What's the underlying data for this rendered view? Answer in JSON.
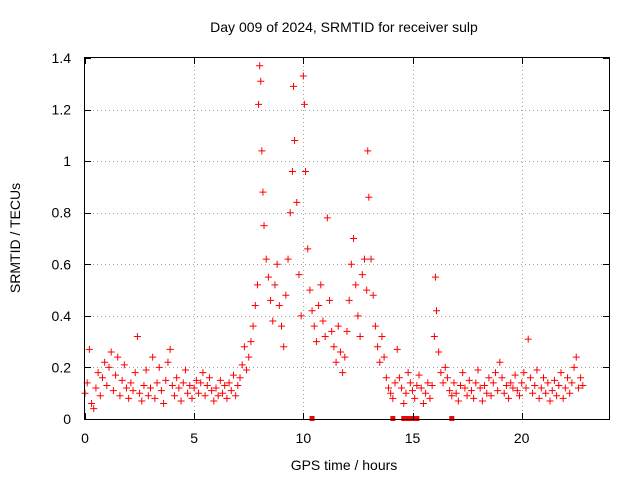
{
  "chart_data": {
    "type": "scatter",
    "title": "Day 009 of 2024, SRMTID for receiver sulp",
    "xlabel": "GPS time / hours",
    "ylabel": "SRMTID / TECUs",
    "xlim": [
      0,
      24
    ],
    "ylim": [
      0,
      1.4
    ],
    "xticks": [
      0,
      5,
      10,
      15,
      20
    ],
    "xtick_labels": [
      "0",
      "5",
      "10",
      "15",
      "20"
    ],
    "yticks": [
      0,
      0.2,
      0.4,
      0.6,
      0.8,
      1.0,
      1.2,
      1.4
    ],
    "ytick_labels": [
      "0",
      "0.2",
      "0.4",
      "0.6",
      "0.8",
      "1",
      "1.2",
      "1.4"
    ],
    "grid": true,
    "marker": "plus",
    "color": "#ff0000",
    "series": [
      {
        "name": "SRMTID",
        "points": [
          [
            0.0,
            0.1
          ],
          [
            0.1,
            0.14
          ],
          [
            0.2,
            0.27
          ],
          [
            0.3,
            0.06
          ],
          [
            0.4,
            0.04
          ],
          [
            0.5,
            0.12
          ],
          [
            0.6,
            0.18
          ],
          [
            0.7,
            0.09
          ],
          [
            0.8,
            0.16
          ],
          [
            0.9,
            0.22
          ],
          [
            1.0,
            0.13
          ],
          [
            1.1,
            0.2
          ],
          [
            1.2,
            0.26
          ],
          [
            1.3,
            0.11
          ],
          [
            1.4,
            0.17
          ],
          [
            1.5,
            0.24
          ],
          [
            1.6,
            0.09
          ],
          [
            1.7,
            0.15
          ],
          [
            1.8,
            0.21
          ],
          [
            1.9,
            0.12
          ],
          [
            2.0,
            0.08
          ],
          [
            2.1,
            0.14
          ],
          [
            2.2,
            0.11
          ],
          [
            2.3,
            0.18
          ],
          [
            2.4,
            0.32
          ],
          [
            2.5,
            0.1
          ],
          [
            2.6,
            0.07
          ],
          [
            2.7,
            0.13
          ],
          [
            2.8,
            0.19
          ],
          [
            2.9,
            0.09
          ],
          [
            3.0,
            0.12
          ],
          [
            3.1,
            0.24
          ],
          [
            3.2,
            0.08
          ],
          [
            3.3,
            0.14
          ],
          [
            3.4,
            0.2
          ],
          [
            3.5,
            0.11
          ],
          [
            3.6,
            0.06
          ],
          [
            3.7,
            0.15
          ],
          [
            3.8,
            0.22
          ],
          [
            3.9,
            0.27
          ],
          [
            4.0,
            0.13
          ],
          [
            4.1,
            0.09
          ],
          [
            4.2,
            0.16
          ],
          [
            4.3,
            0.12
          ],
          [
            4.4,
            0.07
          ],
          [
            4.5,
            0.14
          ],
          [
            4.6,
            0.19
          ],
          [
            4.7,
            0.1
          ],
          [
            4.8,
            0.13
          ],
          [
            4.9,
            0.08
          ],
          [
            5.0,
            0.12
          ],
          [
            5.1,
            0.15
          ],
          [
            5.2,
            0.1
          ],
          [
            5.3,
            0.14
          ],
          [
            5.4,
            0.18
          ],
          [
            5.5,
            0.09
          ],
          [
            5.6,
            0.13
          ],
          [
            5.7,
            0.16
          ],
          [
            5.8,
            0.11
          ],
          [
            5.9,
            0.07
          ],
          [
            6.0,
            0.12
          ],
          [
            6.1,
            0.09
          ],
          [
            6.2,
            0.15
          ],
          [
            6.3,
            0.1
          ],
          [
            6.4,
            0.13
          ],
          [
            6.5,
            0.08
          ],
          [
            6.6,
            0.14
          ],
          [
            6.7,
            0.11
          ],
          [
            6.8,
            0.17
          ],
          [
            6.9,
            0.09
          ],
          [
            7.0,
            0.13
          ],
          [
            7.1,
            0.16
          ],
          [
            7.2,
            0.21
          ],
          [
            7.3,
            0.28
          ],
          [
            7.4,
            0.19
          ],
          [
            7.5,
            0.24
          ],
          [
            7.6,
            0.3
          ],
          [
            7.7,
            0.36
          ],
          [
            7.8,
            0.44
          ],
          [
            7.9,
            0.52
          ],
          [
            7.95,
            1.22
          ],
          [
            8.0,
            1.37
          ],
          [
            8.05,
            1.31
          ],
          [
            8.1,
            1.04
          ],
          [
            8.15,
            0.88
          ],
          [
            8.2,
            0.75
          ],
          [
            8.3,
            0.62
          ],
          [
            8.4,
            0.55
          ],
          [
            8.5,
            0.46
          ],
          [
            8.6,
            0.38
          ],
          [
            8.7,
            0.52
          ],
          [
            8.8,
            0.6
          ],
          [
            8.9,
            0.44
          ],
          [
            9.0,
            0.36
          ],
          [
            9.1,
            0.28
          ],
          [
            9.2,
            0.48
          ],
          [
            9.3,
            0.62
          ],
          [
            9.4,
            0.8
          ],
          [
            9.5,
            0.96
          ],
          [
            9.55,
            1.29
          ],
          [
            9.6,
            1.08
          ],
          [
            9.7,
            0.84
          ],
          [
            9.8,
            0.56
          ],
          [
            9.9,
            0.4
          ],
          [
            10.0,
            1.33
          ],
          [
            10.05,
            1.22
          ],
          [
            10.1,
            0.96
          ],
          [
            10.2,
            0.66
          ],
          [
            10.3,
            0.5
          ],
          [
            10.4,
            0.42
          ],
          [
            10.5,
            0.36
          ],
          [
            10.6,
            0.3
          ],
          [
            10.7,
            0.44
          ],
          [
            10.8,
            0.52
          ],
          [
            10.9,
            0.38
          ],
          [
            11.0,
            0.32
          ],
          [
            11.1,
            0.78
          ],
          [
            11.2,
            0.46
          ],
          [
            11.3,
            0.34
          ],
          [
            11.4,
            0.28
          ],
          [
            11.5,
            0.22
          ],
          [
            11.6,
            0.36
          ],
          [
            11.7,
            0.26
          ],
          [
            11.8,
            0.18
          ],
          [
            11.9,
            0.24
          ],
          [
            12.0,
            0.34
          ],
          [
            12.1,
            0.46
          ],
          [
            12.2,
            0.6
          ],
          [
            12.3,
            0.7
          ],
          [
            12.4,
            0.52
          ],
          [
            12.5,
            0.4
          ],
          [
            12.6,
            0.32
          ],
          [
            12.7,
            0.56
          ],
          [
            12.8,
            0.62
          ],
          [
            12.9,
            0.5
          ],
          [
            12.95,
            1.04
          ],
          [
            13.0,
            0.86
          ],
          [
            13.1,
            0.62
          ],
          [
            13.2,
            0.48
          ],
          [
            13.3,
            0.36
          ],
          [
            13.4,
            0.28
          ],
          [
            13.5,
            0.22
          ],
          [
            13.6,
            0.32
          ],
          [
            13.7,
            0.24
          ],
          [
            13.8,
            0.16
          ],
          [
            13.9,
            0.12
          ],
          [
            14.0,
            0.1
          ],
          [
            14.1,
            0.08
          ],
          [
            14.2,
            0.14
          ],
          [
            14.3,
            0.27
          ],
          [
            14.4,
            0.16
          ],
          [
            14.5,
            0.12
          ],
          [
            14.6,
            0.06
          ],
          [
            14.7,
            0.1
          ],
          [
            14.8,
            0.18
          ],
          [
            14.9,
            0.14
          ],
          [
            15.0,
            0.11
          ],
          [
            15.1,
            0.08
          ],
          [
            15.2,
            0.13
          ],
          [
            15.3,
            0.17
          ],
          [
            15.4,
            0.12
          ],
          [
            15.5,
            0.06
          ],
          [
            15.6,
            0.1
          ],
          [
            15.7,
            0.14
          ],
          [
            15.8,
            0.08
          ],
          [
            15.9,
            0.13
          ],
          [
            16.0,
            0.32
          ],
          [
            16.05,
            0.55
          ],
          [
            16.1,
            0.42
          ],
          [
            16.2,
            0.26
          ],
          [
            16.3,
            0.18
          ],
          [
            16.4,
            0.14
          ],
          [
            16.5,
            0.2
          ],
          [
            16.6,
            0.16
          ],
          [
            16.7,
            0.11
          ],
          [
            16.8,
            0.09
          ],
          [
            16.9,
            0.14
          ],
          [
            17.0,
            0.1
          ],
          [
            17.1,
            0.07
          ],
          [
            17.2,
            0.13
          ],
          [
            17.3,
            0.18
          ],
          [
            17.4,
            0.12
          ],
          [
            17.5,
            0.09
          ],
          [
            17.6,
            0.15
          ],
          [
            17.7,
            0.11
          ],
          [
            17.8,
            0.08
          ],
          [
            17.9,
            0.14
          ],
          [
            18.0,
            0.19
          ],
          [
            18.1,
            0.12
          ],
          [
            18.2,
            0.07
          ],
          [
            18.3,
            0.13
          ],
          [
            18.4,
            0.1
          ],
          [
            18.5,
            0.16
          ],
          [
            18.6,
            0.09
          ],
          [
            18.7,
            0.14
          ],
          [
            18.8,
            0.18
          ],
          [
            18.9,
            0.11
          ],
          [
            19.0,
            0.22
          ],
          [
            19.1,
            0.16
          ],
          [
            19.2,
            0.1
          ],
          [
            19.3,
            0.13
          ],
          [
            19.4,
            0.08
          ],
          [
            19.5,
            0.14
          ],
          [
            19.6,
            0.12
          ],
          [
            19.7,
            0.17
          ],
          [
            19.8,
            0.11
          ],
          [
            19.9,
            0.09
          ],
          [
            20.0,
            0.14
          ],
          [
            20.1,
            0.18
          ],
          [
            20.2,
            0.12
          ],
          [
            20.3,
            0.31
          ],
          [
            20.4,
            0.16
          ],
          [
            20.5,
            0.1
          ],
          [
            20.6,
            0.13
          ],
          [
            20.7,
            0.19
          ],
          [
            20.8,
            0.08
          ],
          [
            20.9,
            0.12
          ],
          [
            21.0,
            0.16
          ],
          [
            21.1,
            0.1
          ],
          [
            21.2,
            0.14
          ],
          [
            21.3,
            0.07
          ],
          [
            21.4,
            0.11
          ],
          [
            21.5,
            0.15
          ],
          [
            21.6,
            0.09
          ],
          [
            21.7,
            0.13
          ],
          [
            21.8,
            0.18
          ],
          [
            21.9,
            0.08
          ],
          [
            22.0,
            0.12
          ],
          [
            22.1,
            0.16
          ],
          [
            22.2,
            0.1
          ],
          [
            22.3,
            0.14
          ],
          [
            22.4,
            0.2
          ],
          [
            22.5,
            0.24
          ],
          [
            22.6,
            0.12
          ],
          [
            22.7,
            0.16
          ],
          [
            22.8,
            0.13
          ]
        ]
      }
    ],
    "gap_markers": [
      10.4,
      14.1,
      14.6,
      14.8,
      15.0,
      15.2,
      16.8
    ]
  }
}
